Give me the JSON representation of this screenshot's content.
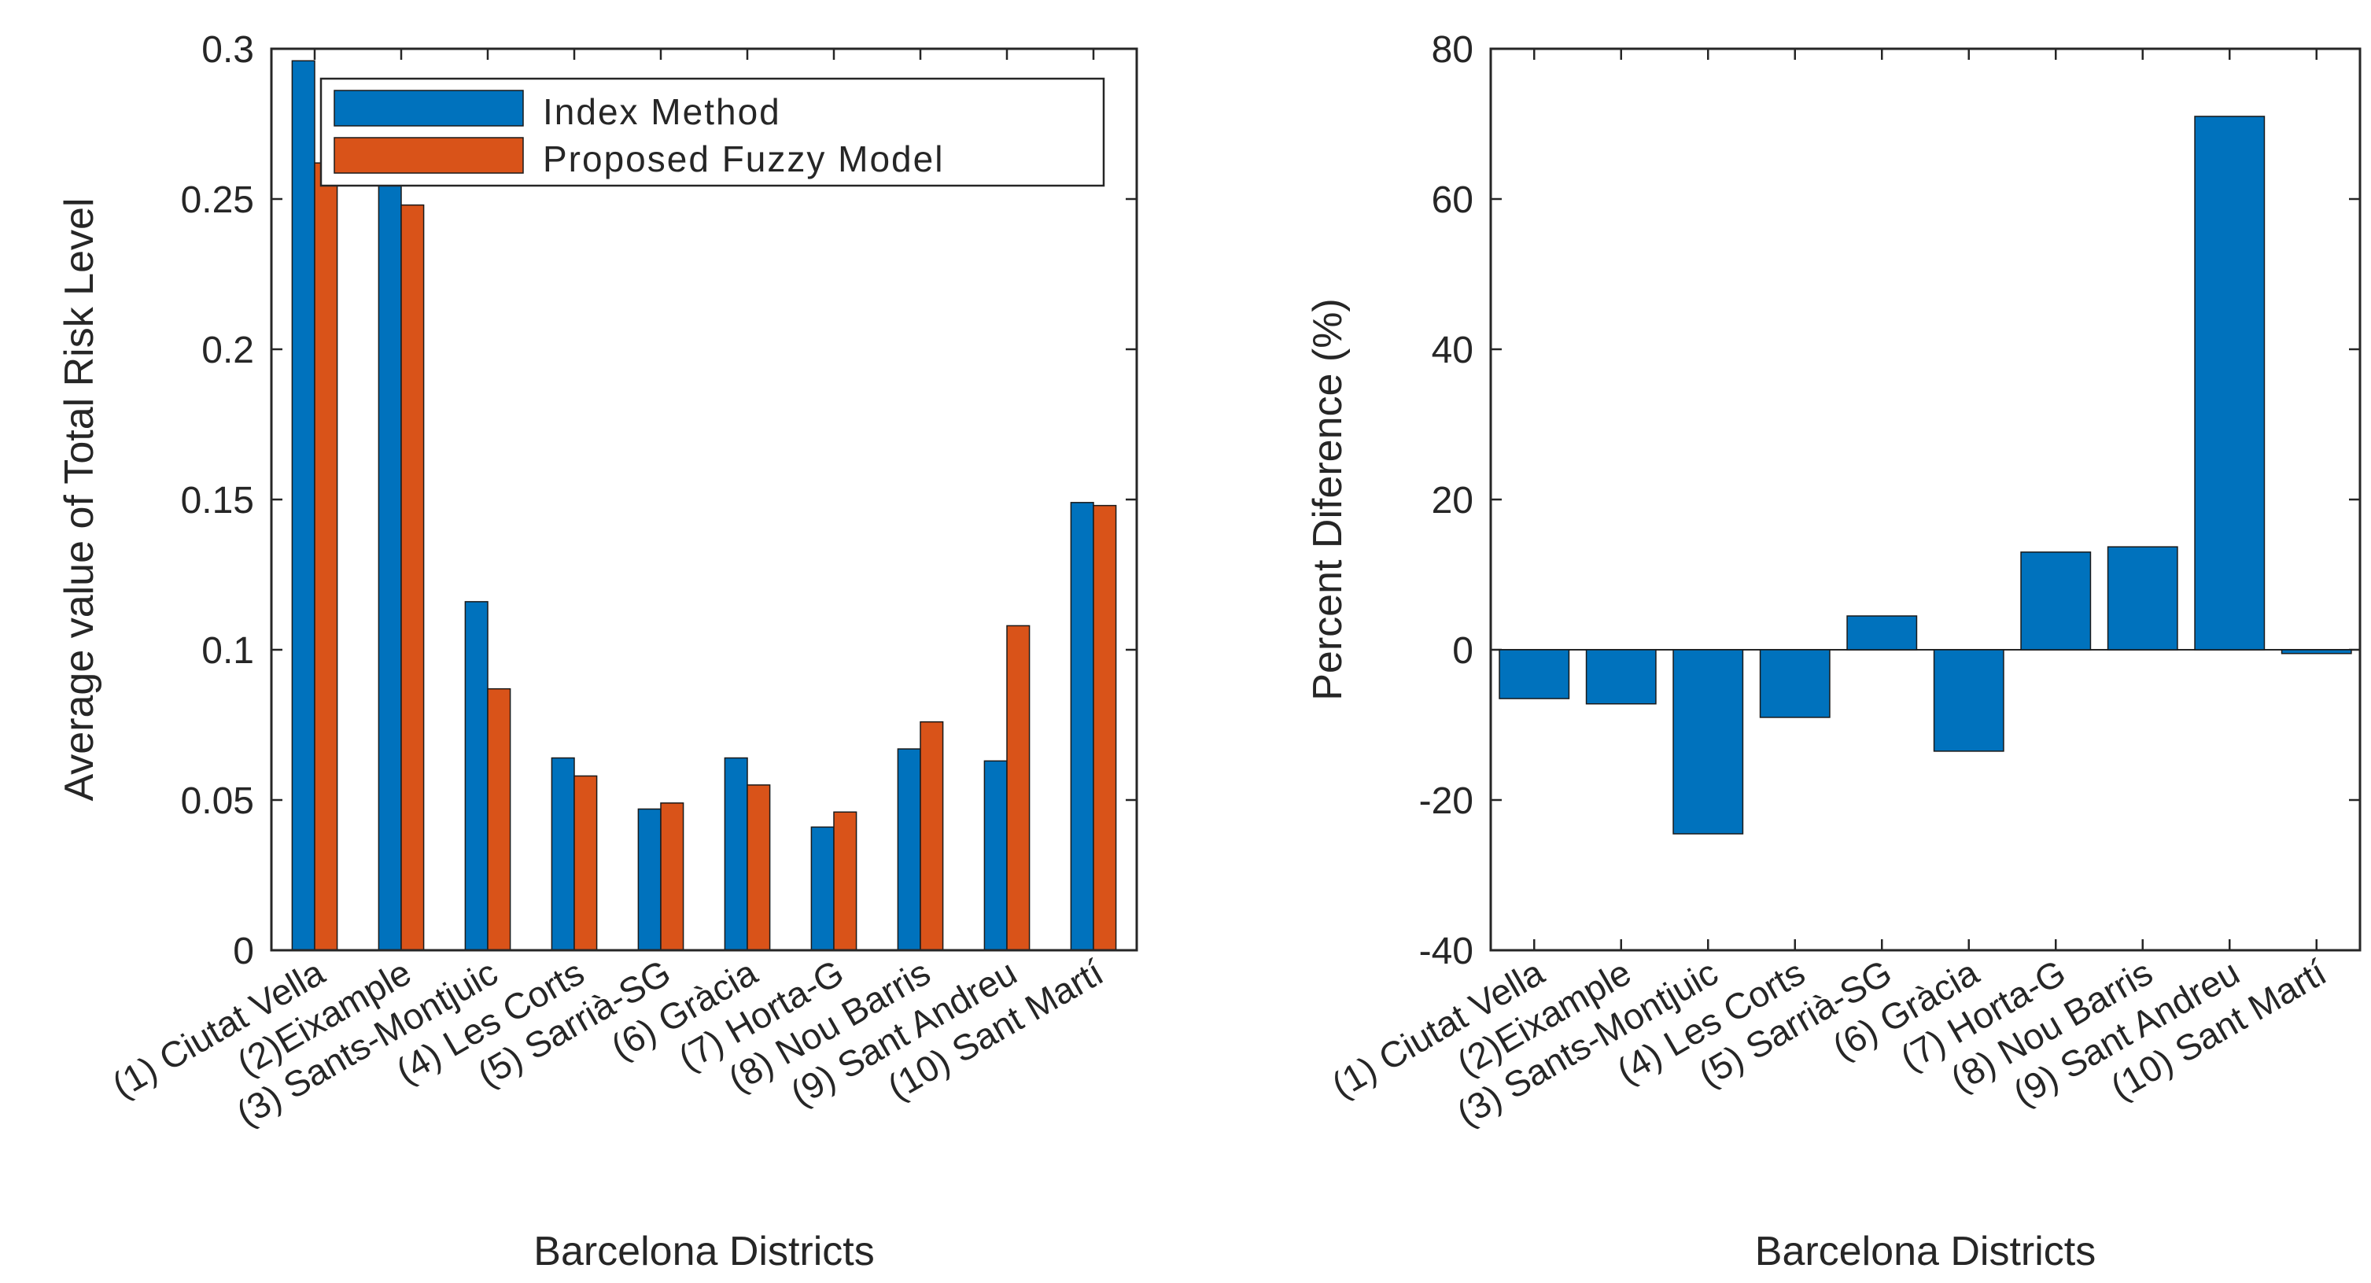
{
  "chart_data": [
    {
      "type": "bar",
      "title": "",
      "xlabel": "Barcelona Districts",
      "ylabel": "Average value of Total Risk Level",
      "ylim": [
        0,
        0.3
      ],
      "yticks": [
        "0",
        "0.05",
        "0.1",
        "0.15",
        "0.2",
        "0.25",
        "0.3"
      ],
      "categories": [
        "(1) Ciutat Vella",
        "(2)Eixample",
        "(3) Sants-Montjuic",
        "(4) Les Corts",
        "(5) Sarrià-SG",
        "(6) Gràcia",
        "(7) Horta-G",
        "(8) Nou Barris",
        "(9) Sant Andreu",
        "(10) Sant Martí"
      ],
      "series": [
        {
          "name": "Index Method",
          "color": "#0072BD",
          "values": [
            0.296,
            0.263,
            0.116,
            0.064,
            0.047,
            0.064,
            0.041,
            0.067,
            0.063,
            0.149
          ]
        },
        {
          "name": "Proposed Fuzzy Model",
          "color": "#D95319",
          "values": [
            0.262,
            0.248,
            0.087,
            0.058,
            0.049,
            0.055,
            0.046,
            0.076,
            0.108,
            0.148
          ]
        }
      ],
      "legend": "top-right"
    },
    {
      "type": "bar",
      "title": "",
      "xlabel": "Barcelona Districts",
      "ylabel": "Percent Diference (%)",
      "ylim": [
        -40,
        80
      ],
      "yticks": [
        "-40",
        "-20",
        "0",
        "20",
        "40",
        "60",
        "80"
      ],
      "categories": [
        "(1) Ciutat Vella",
        "(2)Eixample",
        "(3) Sants-Montjuic",
        "(4) Les Corts",
        "(5) Sarrià-SG",
        "(6) Gràcia",
        "(7) Horta-G",
        "(8) Nou Barris",
        "(9) Sant Andreu",
        "(10) Sant Martí"
      ],
      "series": [
        {
          "name": "Percent Difference",
          "color": "#0072BD",
          "values": [
            -6.5,
            -7.2,
            -24.5,
            -9,
            4.5,
            -13.5,
            13,
            13.7,
            71,
            -0.5
          ]
        }
      ]
    }
  ]
}
